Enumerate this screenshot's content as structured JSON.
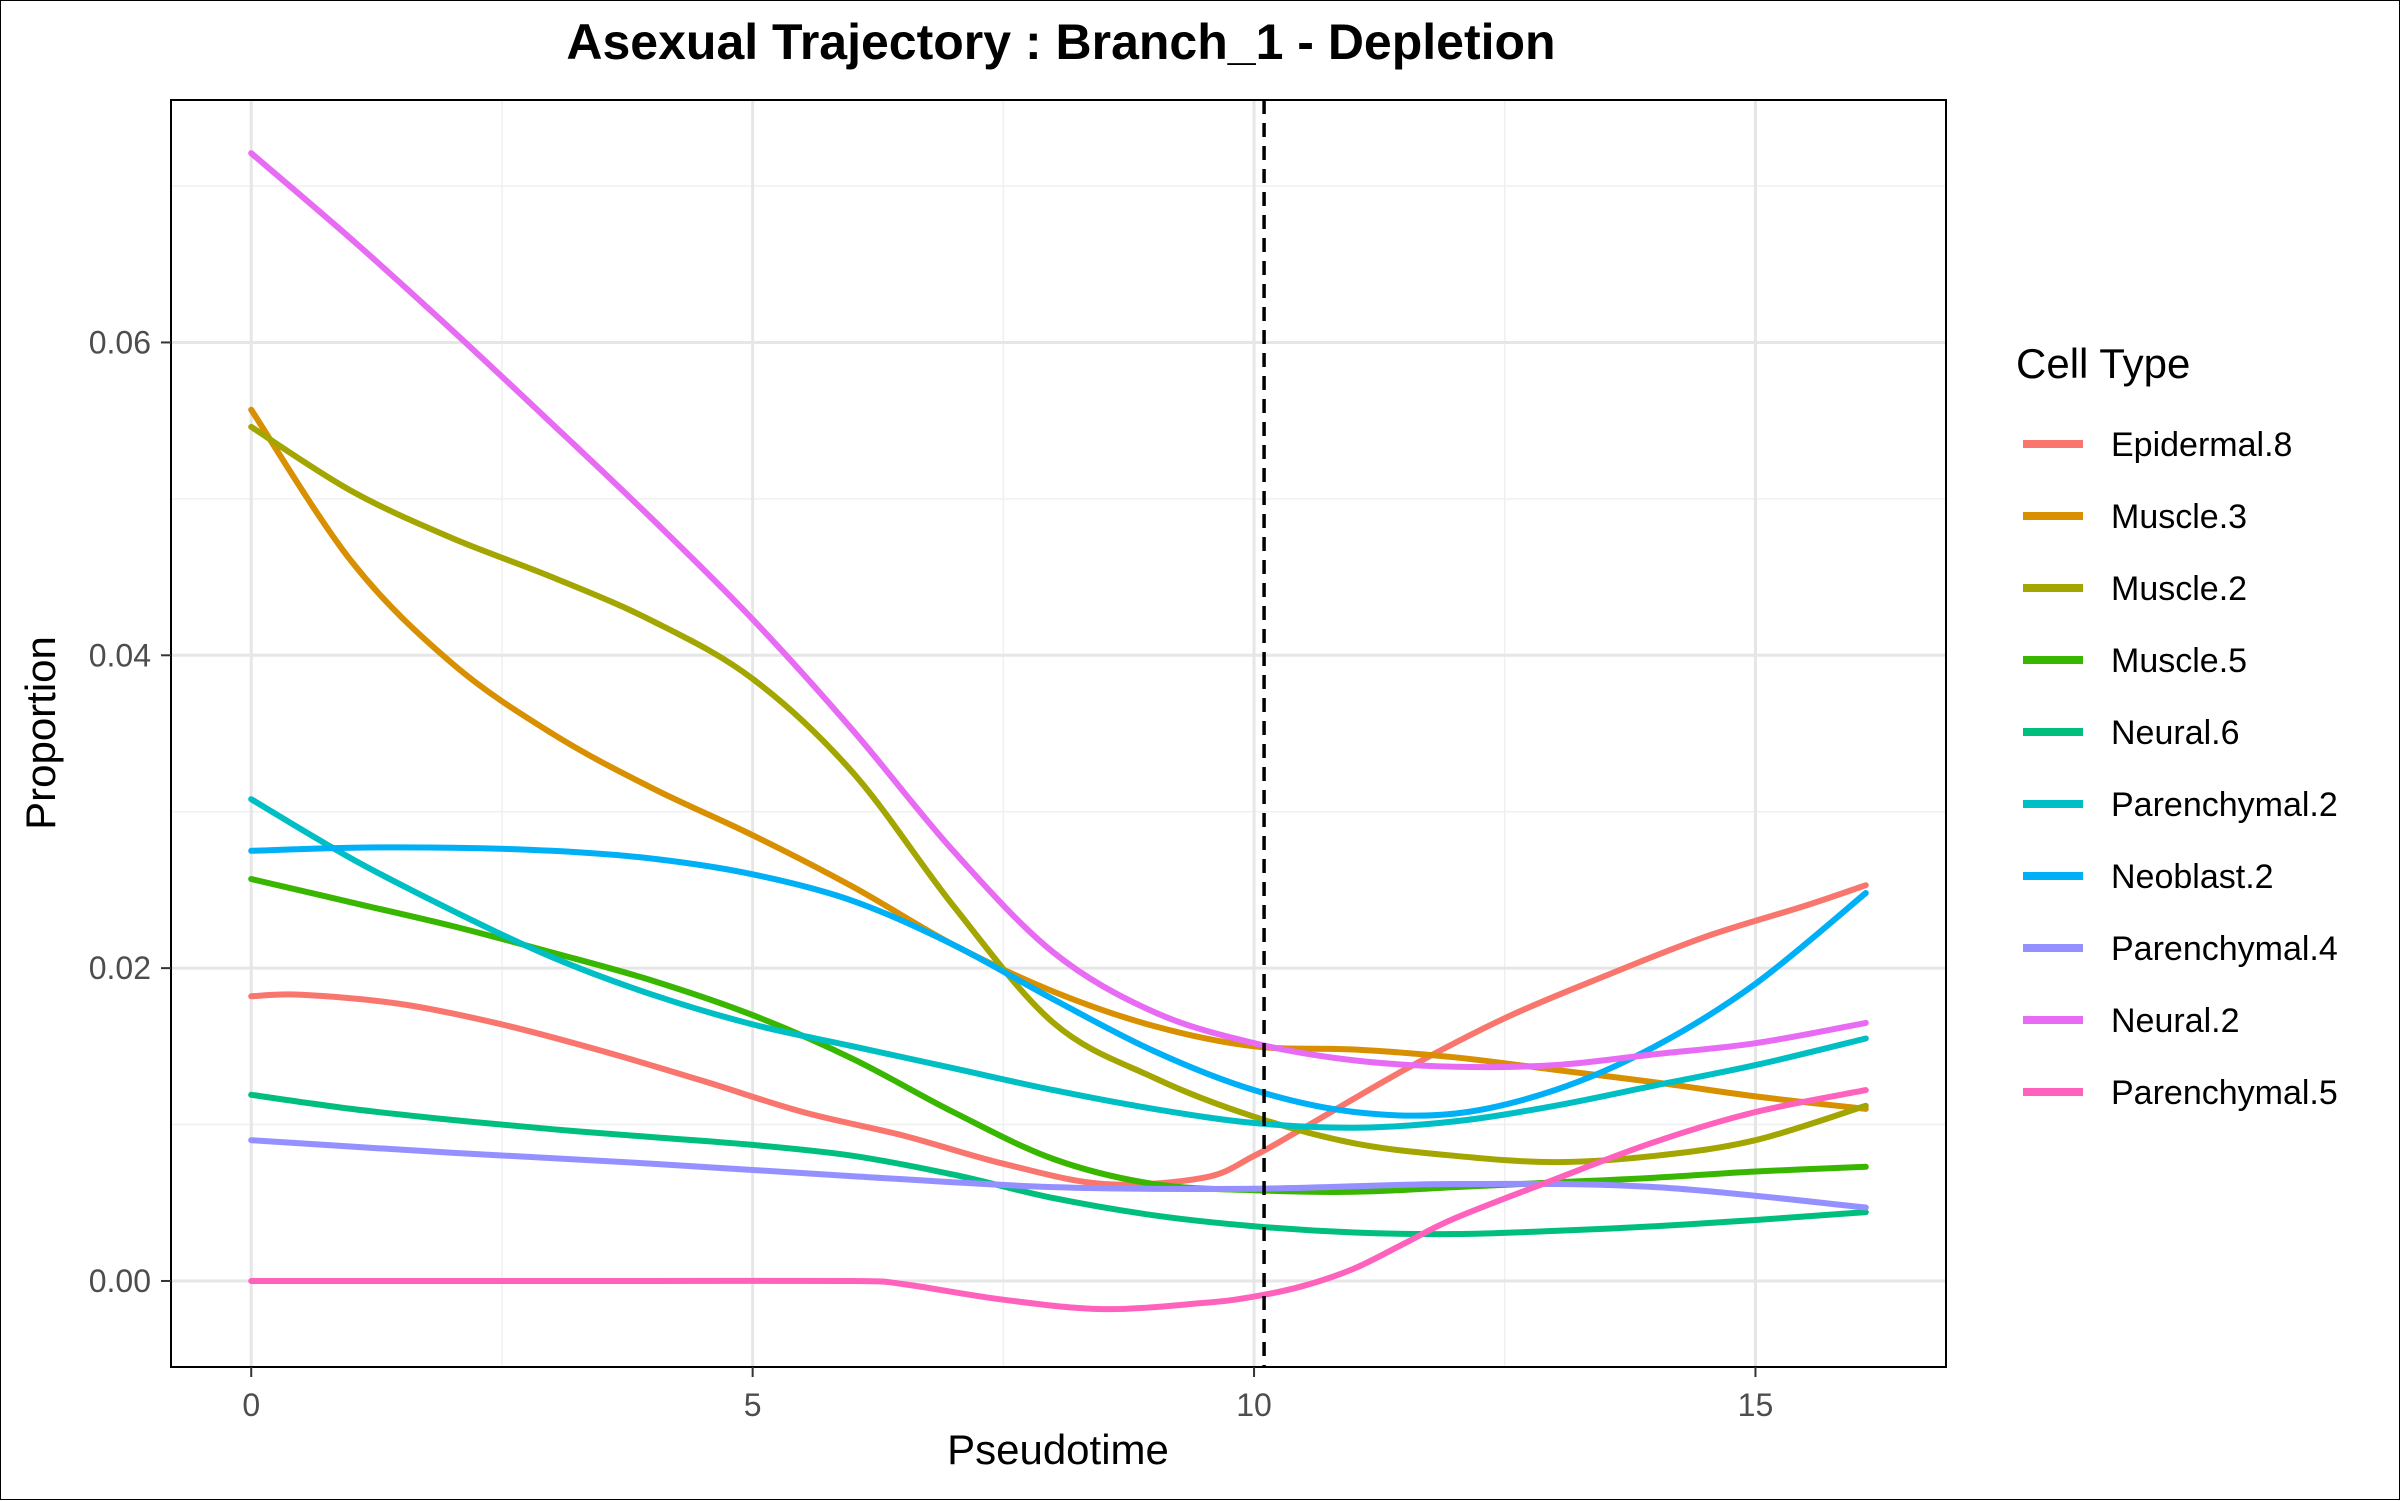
{
  "chart_data": {
    "type": "line",
    "title": "Asexual Trajectory : Branch_1 - Depletion",
    "xlabel": "Pseudotime",
    "ylabel": "Proportion",
    "xlim": [
      -0.8,
      16.9
    ],
    "ylim": [
      -0.0055,
      0.0755
    ],
    "x_ticks": [
      0,
      5,
      10,
      15
    ],
    "x_tick_labels": [
      "0",
      "5",
      "10",
      "15"
    ],
    "x_minor_ticks": [
      2.5,
      7.5,
      12.5
    ],
    "y_ticks": [
      0.0,
      0.02,
      0.04,
      0.06
    ],
    "y_tick_labels": [
      "0.00",
      "0.02",
      "0.04",
      "0.06"
    ],
    "y_minor_ticks": [
      0.01,
      0.03,
      0.05,
      0.07
    ],
    "grid": true,
    "vline": {
      "x": 10.1,
      "style": "dashed",
      "color": "#000000"
    },
    "legend": {
      "title": "Cell Type",
      "position": "right"
    },
    "series": [
      {
        "name": "Epidermal.8",
        "color": "#F8766D",
        "x": [
          0,
          0.5,
          1.5,
          2.5,
          3.5,
          4.5,
          5.5,
          6.5,
          7.5,
          8.5,
          9.5,
          10.0,
          10.5,
          11.5,
          12.5,
          13.5,
          14.5,
          15.5,
          16.1
        ],
        "y": [
          0.0182,
          0.0183,
          0.0177,
          0.0164,
          0.0147,
          0.0128,
          0.0108,
          0.0093,
          0.0075,
          0.0062,
          0.0066,
          0.008,
          0.0098,
          0.0135,
          0.0168,
          0.0195,
          0.022,
          0.024,
          0.0253
        ]
      },
      {
        "name": "Muscle.3",
        "color": "#D89000",
        "x": [
          0,
          1,
          2,
          3,
          4,
          5,
          6,
          7,
          8,
          9,
          10,
          11,
          12,
          13,
          14,
          15,
          16.1
        ],
        "y": [
          0.0557,
          0.046,
          0.0395,
          0.035,
          0.0315,
          0.0285,
          0.0252,
          0.0215,
          0.0185,
          0.0163,
          0.015,
          0.0148,
          0.0143,
          0.0135,
          0.0127,
          0.0118,
          0.011
        ]
      },
      {
        "name": "Muscle.2",
        "color": "#A3A500",
        "x": [
          0,
          1,
          2,
          3,
          4,
          5,
          6,
          7,
          8,
          9,
          10,
          11,
          12,
          13,
          14,
          15,
          16.1
        ],
        "y": [
          0.0546,
          0.0505,
          0.0475,
          0.045,
          0.0422,
          0.0385,
          0.0325,
          0.024,
          0.0165,
          0.013,
          0.0105,
          0.0088,
          0.008,
          0.0076,
          0.008,
          0.009,
          0.0112
        ]
      },
      {
        "name": "Muscle.5",
        "color": "#39B600",
        "x": [
          0,
          1,
          2,
          3,
          4,
          5,
          6,
          7,
          8,
          9,
          10,
          11,
          12,
          13,
          14,
          15,
          16.1
        ],
        "y": [
          0.0257,
          0.0242,
          0.0227,
          0.021,
          0.0192,
          0.017,
          0.0142,
          0.0108,
          0.0078,
          0.0062,
          0.0058,
          0.0057,
          0.006,
          0.0063,
          0.0066,
          0.007,
          0.0073
        ]
      },
      {
        "name": "Neural.6",
        "color": "#00BF7D",
        "x": [
          0,
          1,
          2,
          3,
          4,
          5,
          6,
          7,
          8,
          9,
          10,
          11,
          12,
          13,
          14,
          15,
          16.1
        ],
        "y": [
          0.0119,
          0.011,
          0.0103,
          0.0097,
          0.0092,
          0.0087,
          0.008,
          0.0068,
          0.0053,
          0.0042,
          0.0035,
          0.0031,
          0.003,
          0.0032,
          0.0035,
          0.0039,
          0.0044
        ]
      },
      {
        "name": "Parenchymal.2",
        "color": "#00BFC4",
        "x": [
          0,
          1,
          2,
          3,
          4,
          5,
          6,
          7,
          8,
          9,
          10,
          11,
          12,
          13,
          14,
          15,
          16.1
        ],
        "y": [
          0.0308,
          0.027,
          0.0237,
          0.0207,
          0.0183,
          0.0164,
          0.015,
          0.0136,
          0.0122,
          0.011,
          0.0101,
          0.0098,
          0.0102,
          0.0112,
          0.0125,
          0.0138,
          0.0155
        ]
      },
      {
        "name": "Neoblast.2",
        "color": "#00B0F6",
        "x": [
          0,
          1,
          2,
          3,
          4,
          5,
          6,
          7,
          8,
          9,
          10,
          11,
          12,
          13,
          14,
          15,
          16.1
        ],
        "y": [
          0.0275,
          0.0277,
          0.0277,
          0.0275,
          0.027,
          0.026,
          0.0243,
          0.0215,
          0.018,
          0.0147,
          0.0122,
          0.0108,
          0.0107,
          0.0122,
          0.015,
          0.019,
          0.0248
        ]
      },
      {
        "name": "Parenchymal.4",
        "color": "#9590FF",
        "x": [
          0,
          2,
          4,
          6,
          8,
          10,
          12,
          14,
          16.1
        ],
        "y": [
          0.009,
          0.0082,
          0.0075,
          0.0067,
          0.006,
          0.0059,
          0.0062,
          0.006,
          0.0047
        ]
      },
      {
        "name": "Neural.2",
        "color": "#E76BF3",
        "x": [
          0,
          1,
          2,
          3,
          4,
          5,
          6,
          7,
          8,
          9,
          10,
          11,
          12,
          13,
          14,
          15,
          16.1
        ],
        "y": [
          0.0721,
          0.0666,
          0.0608,
          0.0548,
          0.0487,
          0.0423,
          0.0352,
          0.0275,
          0.021,
          0.0172,
          0.0152,
          0.0141,
          0.0137,
          0.0138,
          0.0145,
          0.0152,
          0.0165
        ]
      },
      {
        "name": "Parenchymal.5",
        "color": "#FF62BC",
        "x": [
          0,
          2,
          4,
          6,
          6.5,
          7.5,
          8.5,
          9.5,
          10.0,
          10.5,
          11.0,
          11.5,
          12,
          13,
          14,
          15,
          16.1
        ],
        "y": [
          0.0,
          0.0,
          0.0,
          0.0,
          -0.0002,
          -0.0012,
          -0.0018,
          -0.0014,
          -0.001,
          -0.0003,
          0.0008,
          0.0024,
          0.004,
          0.0065,
          0.0089,
          0.0108,
          0.0122
        ]
      }
    ]
  }
}
